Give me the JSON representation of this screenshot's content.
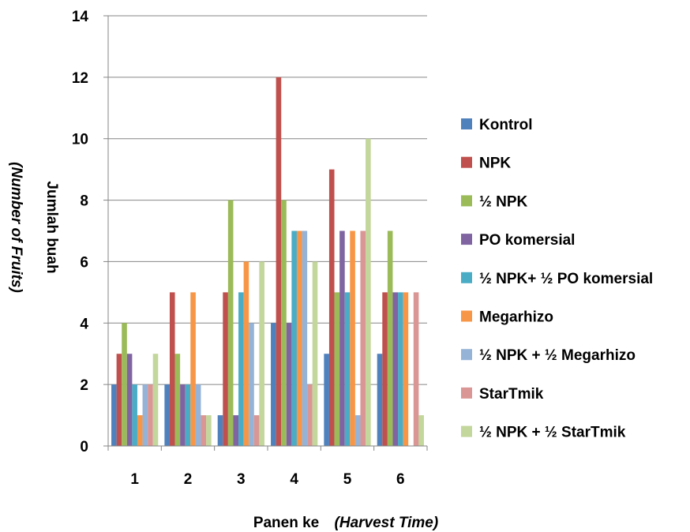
{
  "chart_data": {
    "type": "bar",
    "categories": [
      "1",
      "2",
      "3",
      "4",
      "5",
      "6"
    ],
    "series": [
      {
        "name": "Kontrol",
        "color": "#4F81BD",
        "values": [
          2,
          2,
          1,
          4,
          3,
          3
        ]
      },
      {
        "name": "NPK",
        "color": "#C0504D",
        "values": [
          3,
          5,
          5,
          12,
          9,
          5
        ]
      },
      {
        "name": "½ NPK",
        "color": "#9BBB59",
        "values": [
          4,
          3,
          8,
          8,
          5,
          7
        ]
      },
      {
        "name": "PO komersial",
        "color": "#8064A2",
        "values": [
          3,
          2,
          1,
          4,
          7,
          5
        ]
      },
      {
        "name": "½ NPK+  ½ PO komersial",
        "color": "#4BACC6",
        "values": [
          2,
          2,
          5,
          7,
          5,
          5
        ]
      },
      {
        "name": "Megarhizo",
        "color": "#F79646",
        "values": [
          1,
          5,
          6,
          7,
          7,
          5
        ]
      },
      {
        "name": "½ NPK + ½ Megarhizo",
        "color": "#95B3D7",
        "values": [
          2,
          2,
          4,
          7,
          1,
          0
        ]
      },
      {
        "name": "StarTmik",
        "color": "#D99694",
        "values": [
          2,
          1,
          1,
          2,
          7,
          5
        ]
      },
      {
        "name": "½ NPK + ½ StarTmik",
        "color": "#C3D69B",
        "values": [
          3,
          1,
          6,
          6,
          10,
          1
        ]
      }
    ],
    "y_ticks": [
      "0",
      "2",
      "4",
      "6",
      "8",
      "10",
      "12",
      "14"
    ],
    "ylim": [
      0,
      14
    ],
    "xlabel_main": "Panen ke",
    "xlabel_italic": "(Harvest Time)",
    "ylabel_main": "Jumlah buah",
    "ylabel_italic": "(Number of Fruits)",
    "grid": true,
    "legend_position": "right"
  }
}
